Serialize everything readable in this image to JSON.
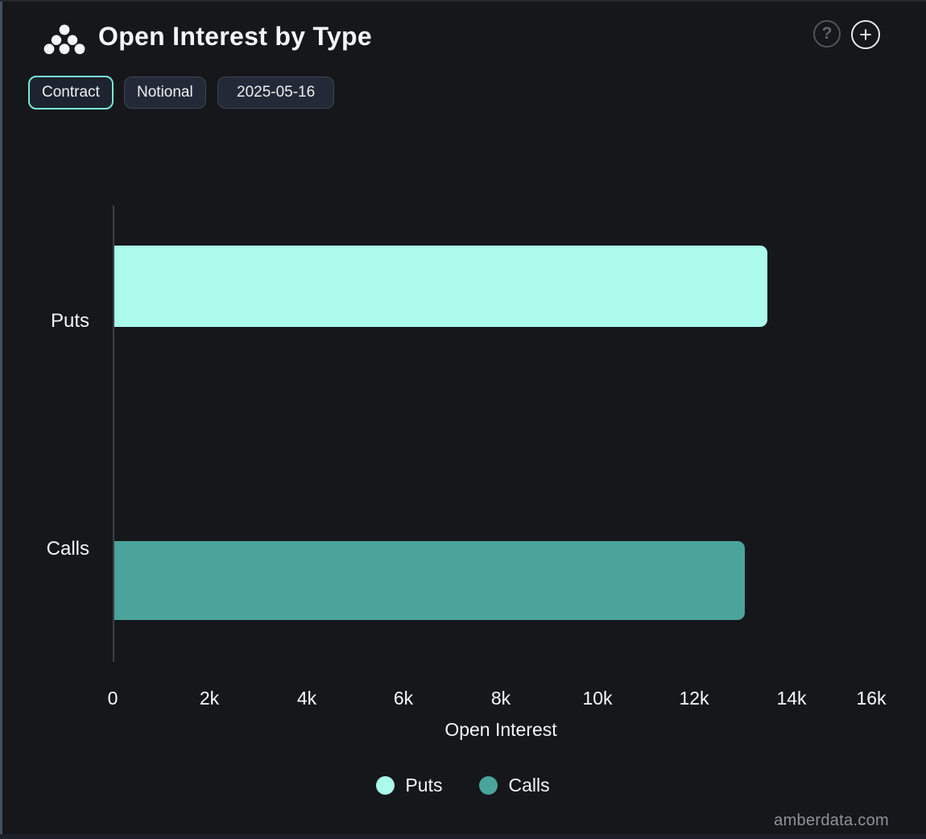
{
  "header": {
    "title": "Open Interest by Type",
    "help_glyph": "?",
    "add_glyph": "+"
  },
  "toolbar": {
    "buttons": [
      {
        "label": "Contract",
        "active": true
      },
      {
        "label": "Notional",
        "active": false
      },
      {
        "label": "2025-05-16",
        "active": false
      }
    ]
  },
  "chart_data": {
    "type": "bar",
    "orientation": "horizontal",
    "title": "Open Interest by Type",
    "categories": [
      "Puts",
      "Calls"
    ],
    "series": [
      {
        "name": "Puts",
        "value": 13470,
        "color": "#abfaec"
      },
      {
        "name": "Calls",
        "value": 13010,
        "color": "#4aa49b"
      }
    ],
    "xlabel": "Open Interest",
    "ylabel": "",
    "xlim": [
      0,
      16000
    ],
    "x_ticks": [
      "0",
      "2k",
      "4k",
      "6k",
      "8k",
      "10k",
      "12k",
      "14k",
      "16k"
    ],
    "grid": false,
    "legend": [
      {
        "label": "Puts",
        "color": "#abfaec"
      },
      {
        "label": "Calls",
        "color": "#4aa49b"
      }
    ],
    "legend_position": "bottom"
  },
  "footer": {
    "watermark": "amberdata.com"
  },
  "colors": {
    "background": "#15171b",
    "accent_active_border": "#79e8d6",
    "inactive_border": "#3d4554",
    "axis_line": "#3c4046",
    "muted_text": "#8f9298"
  }
}
